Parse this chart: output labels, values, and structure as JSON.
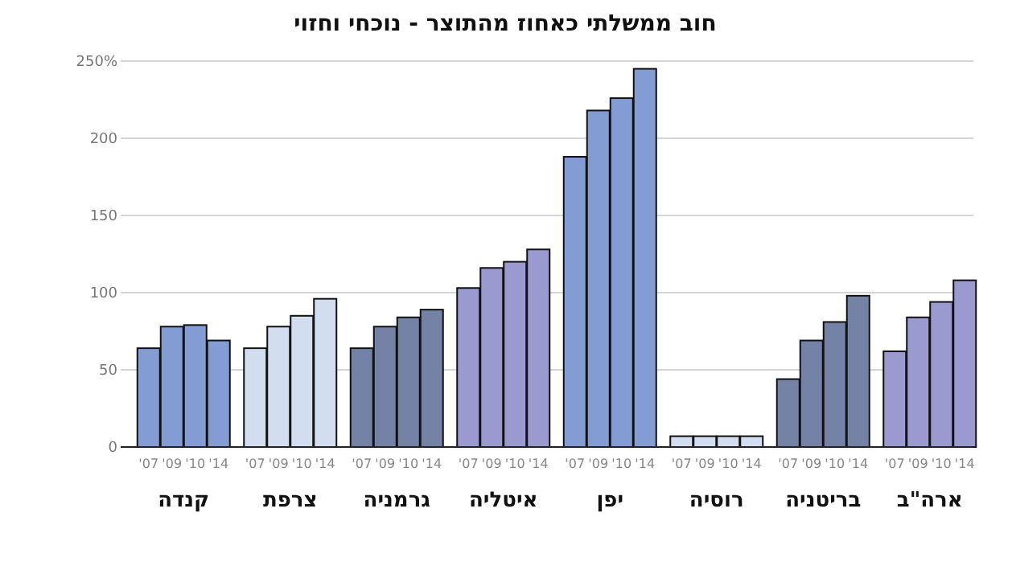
{
  "chart_data": {
    "type": "bar",
    "title": "חוב ממשלתי כאחוז מהתוצר - נוכחי וחזוי",
    "categories": [
      "קנדה",
      "צרפת",
      "גרמניה",
      "איטליה",
      "יפן",
      "רוסיה",
      "בריטניה",
      "ארה\"ב"
    ],
    "series": [
      {
        "name": "'07",
        "colors": [
          "#839dd4",
          "#d3ddf0",
          "#7482a6",
          "#9a99d0",
          "#839dd4",
          "#d3ddf0",
          "#7482a6",
          "#9a99d0"
        ],
        "values": [
          64,
          64,
          64,
          103,
          188,
          7,
          44,
          62
        ]
      },
      {
        "name": "'09",
        "colors": [
          "#839dd4",
          "#d3ddf0",
          "#7482a6",
          "#9a99d0",
          "#839dd4",
          "#d3ddf0",
          "#7482a6",
          "#9a99d0"
        ],
        "values": [
          78,
          78,
          78,
          116,
          218,
          7,
          69,
          84
        ]
      },
      {
        "name": "'10",
        "colors": [
          "#839dd4",
          "#d3ddf0",
          "#7482a6",
          "#9a99d0",
          "#839dd4",
          "#d3ddf0",
          "#7482a6",
          "#9a99d0"
        ],
        "values": [
          79,
          85,
          84,
          120,
          226,
          7,
          81,
          94
        ]
      },
      {
        "name": "'14",
        "colors": [
          "#839dd4",
          "#d3ddf0",
          "#7482a6",
          "#9a99d0",
          "#839dd4",
          "#d3ddf0",
          "#7482a6",
          "#9a99d0"
        ],
        "values": [
          69,
          96,
          89,
          128,
          245,
          7,
          98,
          108
        ]
      }
    ],
    "ylim": [
      0,
      250
    ],
    "yticks": [
      0,
      50,
      100,
      150,
      200,
      {
        "value": 250,
        "label": "250%"
      }
    ],
    "grid": "y"
  }
}
